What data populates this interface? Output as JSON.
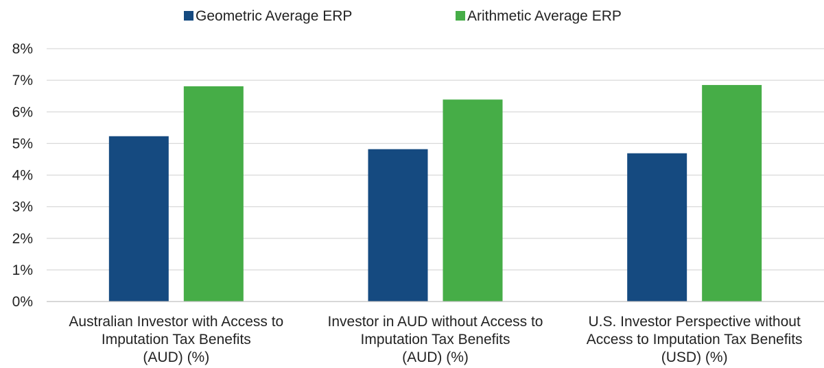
{
  "chart_data": {
    "type": "bar",
    "categories": [
      [
        "Australian Investor with Access to",
        "Imputation Tax Benefits",
        "(AUD) (%)"
      ],
      [
        "Investor in AUD without Access to",
        "Imputation Tax Benefits",
        "(AUD) (%)"
      ],
      [
        "U.S. Investor Perspective without",
        "Access to Imputation Tax Benefits",
        "(USD) (%)"
      ]
    ],
    "series": [
      {
        "name": "Geometric Average ERP",
        "color": "#154a80",
        "values": [
          5.23,
          4.82,
          4.69
        ]
      },
      {
        "name": "Arithmetic Average ERP",
        "color": "#46ad47",
        "values": [
          6.81,
          6.39,
          6.85
        ]
      }
    ],
    "y_ticks": [
      "0%",
      "1%",
      "2%",
      "3%",
      "4%",
      "5%",
      "6%",
      "7%",
      "8%"
    ],
    "ylim": [
      0,
      8
    ],
    "grid": true,
    "legend_position": "top-center",
    "title": "",
    "xlabel": "",
    "ylabel": ""
  }
}
